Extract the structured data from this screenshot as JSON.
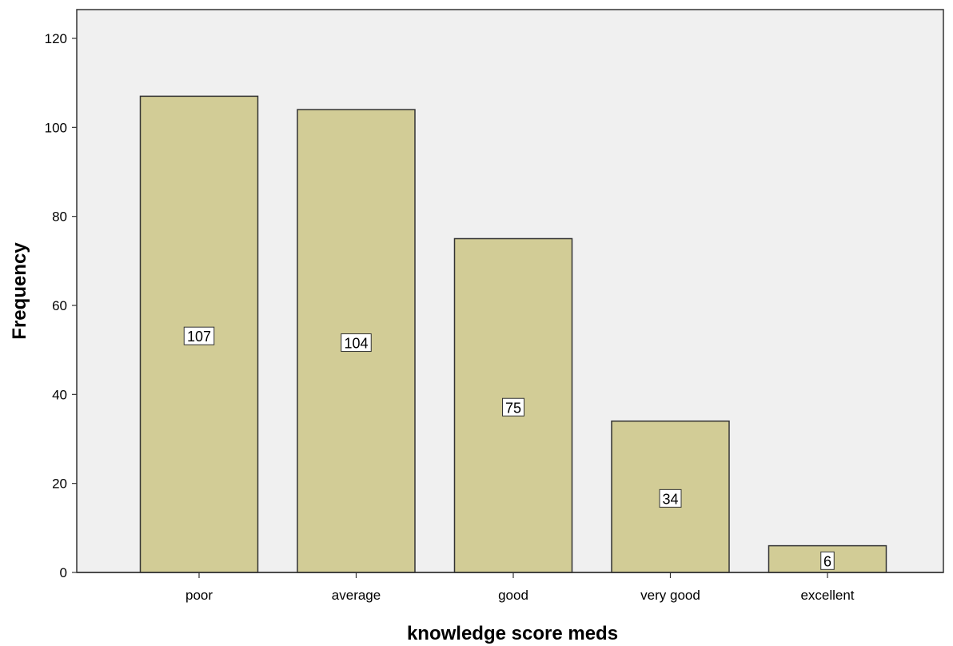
{
  "chart_data": {
    "type": "bar",
    "categories": [
      "poor",
      "average",
      "good",
      "very good",
      "excellent"
    ],
    "values": [
      107,
      104,
      75,
      34,
      6
    ],
    "data_labels": [
      "107",
      "104",
      "75",
      "34",
      "6"
    ],
    "title": "",
    "xlabel": "knowledge score meds",
    "ylabel": "Frequency",
    "ylim": [
      0,
      120
    ],
    "yticks": [
      0,
      20,
      40,
      60,
      80,
      100,
      120
    ],
    "grid": false,
    "legend": "none",
    "colors": {
      "bar_fill": "#d2cc96",
      "bar_stroke": "#333333",
      "plot_background": "#f0f0f0",
      "label_box_fill": "#ffffff"
    }
  }
}
